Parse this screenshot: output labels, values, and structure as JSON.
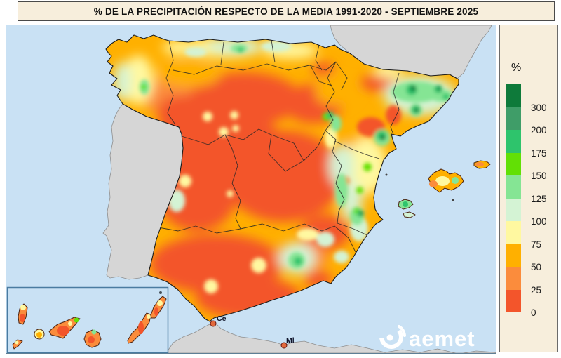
{
  "title": "% DE LA PRECIPITACIÓN RESPECTO DE LA MEDIA 1991-2020 - SEPTIEMBRE 2025",
  "legend": {
    "unit": "%",
    "bins": [
      {
        "label": "300",
        "color": "#0E7A3A"
      },
      {
        "label": "200",
        "color": "#3F9D68"
      },
      {
        "label": "175",
        "color": "#2EC46C"
      },
      {
        "label": "150",
        "color": "#62E005"
      },
      {
        "label": "125",
        "color": "#85E594"
      },
      {
        "label": "100",
        "color": "#D4F3D4"
      },
      {
        "label": "75",
        "color": "#FFF8A0"
      },
      {
        "label": "50",
        "color": "#FFB000"
      },
      {
        "label": "25",
        "color": "#FB8C3C"
      },
      {
        "label": "0",
        "color": "#F3552B"
      }
    ]
  },
  "map": {
    "labels": {
      "ceuta": "Ce",
      "melilla": "Ml"
    },
    "logo_text": "aemet",
    "colors": {
      "sea": "#C9E1F4",
      "outside_land": "#D6D6D6",
      "panel_background": "#F7EEDC"
    }
  }
}
